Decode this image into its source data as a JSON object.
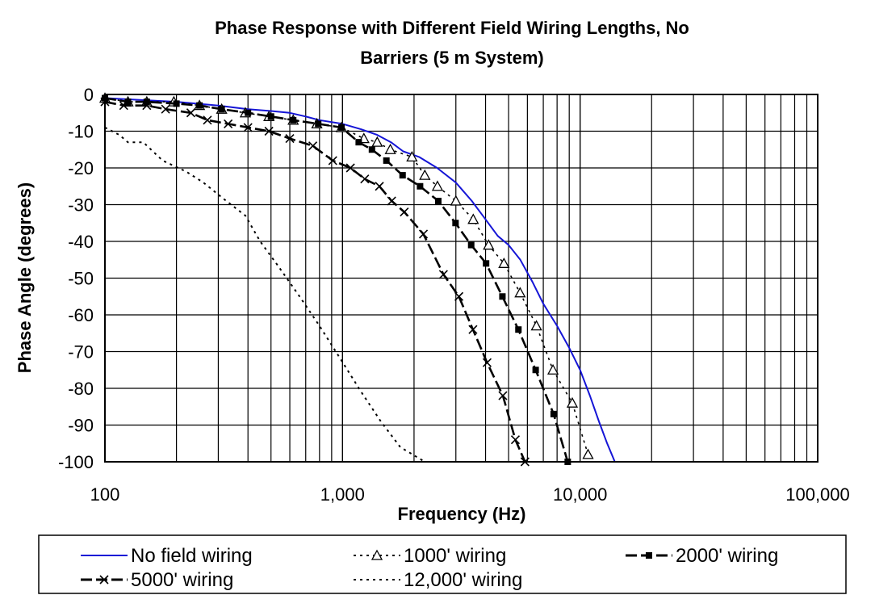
{
  "chart_data": {
    "type": "line",
    "title": [
      "Phase Response with Different Field Wiring Lengths, No",
      "Barriers   (5 m System)"
    ],
    "xlabel": "Frequency (Hz)",
    "ylabel": "Phase Angle (degrees)",
    "x_scale": "log",
    "xlim": [
      100,
      100000
    ],
    "ylim": [
      -100,
      0
    ],
    "x_ticks": [
      {
        "value": 100,
        "label": "100"
      },
      {
        "value": 1000,
        "label": "1,000"
      },
      {
        "value": 10000,
        "label": "10,000"
      },
      {
        "value": 100000,
        "label": "100,000"
      }
    ],
    "y_ticks": [
      {
        "value": 0,
        "label": "0"
      },
      {
        "value": -10,
        "label": "-10"
      },
      {
        "value": -20,
        "label": "-20"
      },
      {
        "value": -30,
        "label": "-30"
      },
      {
        "value": -40,
        "label": "-40"
      },
      {
        "value": -50,
        "label": "-50"
      },
      {
        "value": -60,
        "label": "-60"
      },
      {
        "value": -70,
        "label": "-70"
      },
      {
        "value": -80,
        "label": "-80"
      },
      {
        "value": -90,
        "label": "-90"
      },
      {
        "value": -100,
        "label": "-100"
      }
    ],
    "grid": true,
    "legend_position": "bottom",
    "series": [
      {
        "name": "No field wiring",
        "color": "#1515d6",
        "style": "solid",
        "marker": "none",
        "points": [
          [
            100,
            -1
          ],
          [
            140,
            -1.5
          ],
          [
            200,
            -2
          ],
          [
            300,
            -3
          ],
          [
            400,
            -4
          ],
          [
            500,
            -4.5
          ],
          [
            600,
            -5
          ],
          [
            700,
            -6
          ],
          [
            800,
            -7
          ],
          [
            1000,
            -8
          ],
          [
            1200,
            -9.5
          ],
          [
            1400,
            -11
          ],
          [
            1600,
            -13
          ],
          [
            1800,
            -15.5
          ],
          [
            2100,
            -17
          ],
          [
            2500,
            -20
          ],
          [
            3000,
            -24
          ],
          [
            3500,
            -29
          ],
          [
            4000,
            -34
          ],
          [
            4500,
            -38.5
          ],
          [
            5000,
            -41
          ],
          [
            5600,
            -45
          ],
          [
            6300,
            -51
          ],
          [
            7000,
            -57
          ],
          [
            8000,
            -63
          ],
          [
            9000,
            -69
          ],
          [
            10000,
            -75
          ],
          [
            11000,
            -82
          ],
          [
            12000,
            -89
          ],
          [
            13000,
            -95
          ],
          [
            14000,
            -100
          ]
        ]
      },
      {
        "name": "1000' wiring",
        "color": "#000000",
        "style": "dash-dot",
        "marker": "triangle",
        "points": [
          [
            100,
            -1
          ],
          [
            125,
            -2
          ],
          [
            150,
            -2
          ],
          [
            195,
            -2
          ],
          [
            250,
            -3
          ],
          [
            310,
            -4
          ],
          [
            390,
            -5
          ],
          [
            490,
            -6
          ],
          [
            620,
            -7
          ],
          [
            780,
            -8
          ],
          [
            990,
            -9
          ],
          [
            1230,
            -12
          ],
          [
            1400,
            -13
          ],
          [
            1590,
            -15
          ],
          [
            1960,
            -17
          ],
          [
            2220,
            -22
          ],
          [
            2510,
            -25
          ],
          [
            3000,
            -29
          ],
          [
            3550,
            -34
          ],
          [
            4120,
            -41
          ],
          [
            4780,
            -46
          ],
          [
            5590,
            -54
          ],
          [
            6550,
            -63
          ],
          [
            7690,
            -75
          ],
          [
            9270,
            -84
          ],
          [
            10800,
            -98
          ]
        ]
      },
      {
        "name": "2000' wiring",
        "color": "#000000",
        "style": "long-dash",
        "marker": "square",
        "points": [
          [
            100,
            -1
          ],
          [
            125,
            -2
          ],
          [
            150,
            -2
          ],
          [
            200,
            -2.5
          ],
          [
            250,
            -3
          ],
          [
            310,
            -4
          ],
          [
            400,
            -5
          ],
          [
            500,
            -6
          ],
          [
            620,
            -7
          ],
          [
            790,
            -8
          ],
          [
            990,
            -9
          ],
          [
            1170,
            -13
          ],
          [
            1330,
            -15
          ],
          [
            1530,
            -18
          ],
          [
            1790,
            -22
          ],
          [
            2120,
            -25
          ],
          [
            2530,
            -29
          ],
          [
            2990,
            -35
          ],
          [
            3480,
            -41
          ],
          [
            4020,
            -46
          ],
          [
            4710,
            -55
          ],
          [
            5500,
            -64
          ],
          [
            6500,
            -75
          ],
          [
            7740,
            -87
          ],
          [
            8870,
            -100
          ]
        ]
      },
      {
        "name": "5000' wiring",
        "color": "#000000",
        "style": "long-dash",
        "marker": "x",
        "points": [
          [
            100,
            -2
          ],
          [
            120,
            -3
          ],
          [
            150,
            -3
          ],
          [
            180,
            -4
          ],
          [
            230,
            -5
          ],
          [
            270,
            -7
          ],
          [
            330,
            -8
          ],
          [
            400,
            -9
          ],
          [
            490,
            -10
          ],
          [
            600,
            -12
          ],
          [
            750,
            -14
          ],
          [
            910,
            -18
          ],
          [
            1080,
            -20
          ],
          [
            1240,
            -23
          ],
          [
            1430,
            -25
          ],
          [
            1610,
            -29
          ],
          [
            1820,
            -32
          ],
          [
            2190,
            -38
          ],
          [
            2660,
            -49
          ],
          [
            3090,
            -55
          ],
          [
            3540,
            -64
          ],
          [
            4060,
            -73
          ],
          [
            4730,
            -82
          ],
          [
            5340,
            -94
          ],
          [
            5860,
            -100
          ]
        ]
      },
      {
        "name": "12,000' wiring",
        "color": "#000000",
        "style": "dotted",
        "marker": "none",
        "points": [
          [
            100,
            -9
          ],
          [
            115,
            -11
          ],
          [
            125,
            -13
          ],
          [
            145,
            -13
          ],
          [
            175,
            -18
          ],
          [
            220,
            -21
          ],
          [
            260,
            -24
          ],
          [
            310,
            -28
          ],
          [
            390,
            -33
          ],
          [
            450,
            -40
          ],
          [
            540,
            -47
          ],
          [
            660,
            -55
          ],
          [
            800,
            -63
          ],
          [
            980,
            -72
          ],
          [
            1200,
            -81
          ],
          [
            1450,
            -89
          ],
          [
            1750,
            -96
          ],
          [
            2220,
            -100
          ]
        ]
      }
    ]
  }
}
